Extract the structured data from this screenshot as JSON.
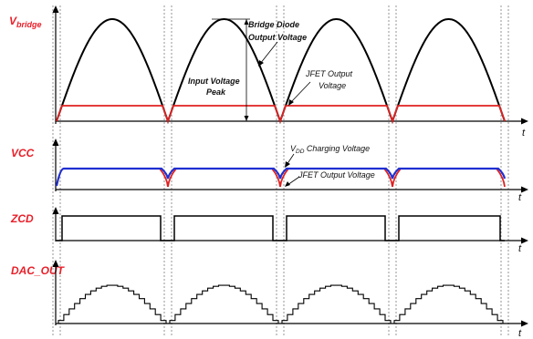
{
  "colors": {
    "label_red": "#e8202a",
    "bridge_black": "#000000",
    "jfet_red": "#e02020",
    "vdd_blue": "#1f2fd0",
    "grid_dash": "#7a7a7a"
  },
  "signals": {
    "vbridge": {
      "label_main": "V",
      "label_sub": "bridge"
    },
    "vcc": {
      "label": "VCC"
    },
    "zcd": {
      "label": "ZCD"
    },
    "dac": {
      "label": "DAC_OUT"
    }
  },
  "time_label": "t",
  "annotations": {
    "bridge_diode_line1": "Bridge Diode",
    "bridge_diode_line2": "Output Voltage",
    "input_peak_line1": "Input Voltage",
    "input_peak_line2": "Peak",
    "jfet_output_line1": "JFET Output",
    "jfet_output_line2": "Voltage",
    "vdd_prefix": "V",
    "vdd_sub": "DD",
    "vdd_suffix": " Charging Voltage",
    "jfet_output_vcc": "JFET Output Voltage"
  }
}
